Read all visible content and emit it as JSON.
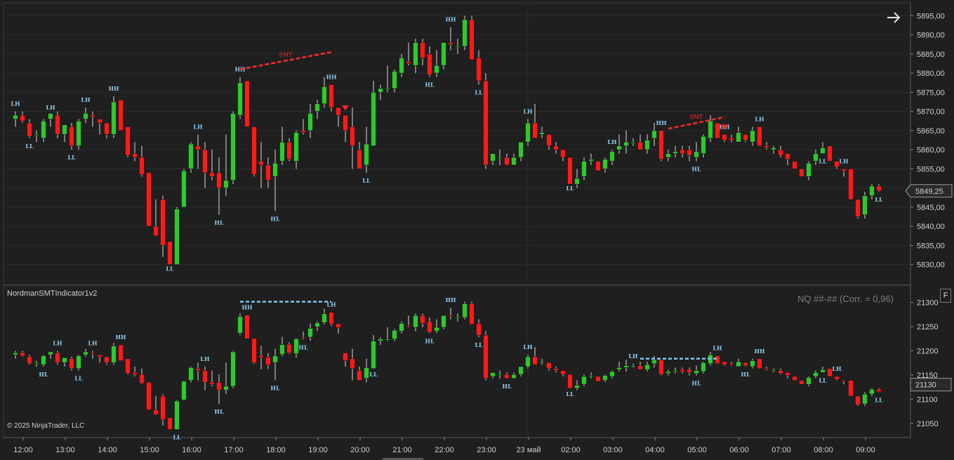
{
  "theme": {
    "background": "#1f1f1f",
    "grid": "#2b2b2b",
    "up_color": "#2ec82e",
    "down_color": "#ff1a1a",
    "swing_label_color": "#8ecbf0",
    "smt_color": "#ff2a2a",
    "smt_dotted_color": "#7ec8f0"
  },
  "icons": {
    "nav_arrow": "arrow-right-icon",
    "flag": "F"
  },
  "indicator_name": "NordmanSMTIndicator1v2",
  "correlation_label": "NQ ##-## (Corr. = 0,96)",
  "copyright": "© 2025 NinjaTrader, LLC",
  "price_axis": {
    "labels": [
      "5895,00",
      "5890,00",
      "5885,00",
      "5880,00",
      "5875,00",
      "5870,00",
      "5865,00",
      "5860,00",
      "5855,00",
      "5850,00",
      "5845,00",
      "5840,00",
      "5835,00",
      "5830,00"
    ],
    "current": "5849,25"
  },
  "lower_axis": {
    "labels": [
      "21300",
      "21250",
      "21200",
      "21150",
      "21130",
      "21100",
      "21050"
    ],
    "current": "21130"
  },
  "time_axis": [
    "12:00",
    "13:00",
    "14:00",
    "15:00",
    "16:00",
    "17:00",
    "18:00",
    "19:00",
    "20:00",
    "21:00",
    "22:00",
    "23:00",
    "23 май",
    "02:00",
    "03:00",
    "04:00",
    "05:00",
    "06:00",
    "07:00",
    "08:00",
    "09:00"
  ],
  "chart_data": [
    {
      "type": "candlestick",
      "instrument": "upper",
      "ylim": [
        5825,
        5898
      ],
      "smt": {
        "label": "SMT",
        "from_bar": 32,
        "to_bar": 45,
        "y1": 5881,
        "y2": 5885.5
      },
      "smt2": {
        "label": "SMT",
        "from_bar": 93,
        "to_bar": 101,
        "y1": 5865.5,
        "y2": 5868.5
      },
      "bars": [
        [
          5868,
          5870,
          5866,
          5869
        ],
        [
          5869,
          5870,
          5867,
          5867.5
        ],
        [
          5867,
          5868,
          5863,
          5863.5
        ],
        [
          5864,
          5865,
          5862,
          5864
        ],
        [
          5863,
          5868,
          5862,
          5867.5
        ],
        [
          5868,
          5869,
          5866,
          5869.5
        ],
        [
          5869,
          5870,
          5863,
          5864
        ],
        [
          5864,
          5866,
          5862,
          5866.5
        ],
        [
          5866,
          5867,
          5860,
          5861
        ],
        [
          5861,
          5868,
          5860,
          5867.5
        ],
        [
          5868,
          5871,
          5867,
          5869.5
        ],
        [
          5869,
          5870,
          5866,
          5868.5
        ],
        [
          5868,
          5868,
          5864,
          5867
        ],
        [
          5867,
          5867,
          5863,
          5864
        ],
        [
          5864,
          5874,
          5863,
          5872.5
        ],
        [
          5873,
          5873,
          5865,
          5865
        ],
        [
          5866,
          5866,
          5858,
          5858.5
        ],
        [
          5859,
          5862,
          5857,
          5858
        ],
        [
          5858,
          5861,
          5853,
          5853.5
        ],
        [
          5854,
          5854,
          5843,
          5840
        ],
        [
          5840,
          5847,
          5838,
          5837.5
        ],
        [
          5847,
          5848,
          5832,
          5835
        ],
        [
          5836,
          5836,
          5831,
          5830
        ],
        [
          5830,
          5845,
          5830,
          5844.5
        ],
        [
          5845,
          5855,
          5845,
          5854.5
        ],
        [
          5855,
          5862,
          5854,
          5861.5
        ],
        [
          5861,
          5864,
          5855,
          5860
        ],
        [
          5860,
          5862,
          5850,
          5854
        ],
        [
          5854,
          5860,
          5852,
          5853
        ],
        [
          5854,
          5858,
          5843,
          5850
        ],
        [
          5850,
          5864,
          5848,
          5852
        ],
        [
          5852,
          5870,
          5851,
          5869.5
        ],
        [
          5869,
          5879,
          5868,
          5877.5
        ],
        [
          5878,
          5878,
          5866,
          5866
        ],
        [
          5866,
          5866,
          5853,
          5853.5
        ],
        [
          5857,
          5862,
          5850,
          5856
        ],
        [
          5856,
          5858,
          5850,
          5852
        ],
        [
          5853,
          5860,
          5844,
          5856.5
        ],
        [
          5857,
          5866,
          5856,
          5862
        ],
        [
          5862,
          5863,
          5857,
          5857.5
        ],
        [
          5857,
          5865,
          5855,
          5864.5
        ],
        [
          5865,
          5868,
          5864,
          5864.5
        ],
        [
          5865,
          5872,
          5863,
          5869.5
        ],
        [
          5870,
          5873,
          5868,
          5872
        ],
        [
          5872,
          5879,
          5871,
          5876.5
        ],
        [
          5877,
          5877,
          5870,
          5871
        ],
        [
          5871,
          5871,
          5866,
          5869
        ],
        [
          5869,
          5869,
          5862,
          5865
        ],
        [
          5866,
          5871,
          5855,
          5861
        ],
        [
          5860,
          5862,
          5857,
          5855
        ],
        [
          5856,
          5866,
          5854,
          5861.5
        ],
        [
          5861,
          5878,
          5862,
          5875
        ],
        [
          5875,
          5877,
          5873,
          5876
        ],
        [
          5876,
          5882,
          5875,
          5876
        ],
        [
          5876,
          5881,
          5875,
          5880.5
        ],
        [
          5880,
          5885,
          5879,
          5884
        ],
        [
          5883,
          5888,
          5882,
          5882.5
        ],
        [
          5882,
          5889,
          5880,
          5888
        ],
        [
          5888,
          5889,
          5882,
          5884
        ],
        [
          5885,
          5887,
          5879,
          5879.5
        ],
        [
          5880,
          5886,
          5879,
          5882
        ],
        [
          5882,
          5888,
          5881,
          5888
        ],
        [
          5888,
          5892,
          5886,
          5887.5
        ],
        [
          5887,
          5889,
          5885,
          5887
        ],
        [
          5887,
          5895,
          5886,
          5894
        ],
        [
          5894,
          5895,
          5884,
          5883.5
        ],
        [
          5884,
          5886,
          5877,
          5878
        ],
        [
          5878,
          5880,
          5855,
          5856
        ],
        [
          5857,
          5859,
          5856,
          5859
        ],
        [
          5858,
          5860,
          5856,
          5858
        ],
        [
          5858,
          5859,
          5856,
          5856
        ],
        [
          5856,
          5859,
          5856,
          5858
        ],
        [
          5858,
          5862,
          5857,
          5862
        ],
        [
          5862,
          5868,
          5861,
          5867
        ],
        [
          5867,
          5872,
          5863,
          5863
        ],
        [
          5864,
          5866,
          5863,
          5864.5
        ],
        [
          5864,
          5864,
          5860,
          5861
        ],
        [
          5861,
          5862,
          5859,
          5860
        ],
        [
          5860,
          5860,
          5857,
          5858
        ],
        [
          5858,
          5858,
          5852,
          5851
        ],
        [
          5851,
          5855,
          5850,
          5852.5
        ],
        [
          5853,
          5858,
          5852,
          5857
        ],
        [
          5857,
          5859,
          5856,
          5857.5
        ],
        [
          5857,
          5857,
          5855,
          5854.5
        ],
        [
          5855,
          5858,
          5854,
          5857.5
        ],
        [
          5857,
          5860,
          5856,
          5859.5
        ],
        [
          5860,
          5864,
          5859,
          5861
        ],
        [
          5861,
          5865,
          5859,
          5862
        ],
        [
          5862,
          5863,
          5861,
          5862
        ],
        [
          5862,
          5864,
          5860,
          5860
        ],
        [
          5860,
          5864,
          5859,
          5862.5
        ],
        [
          5863,
          5867,
          5861,
          5865
        ],
        [
          5865,
          5865,
          5857,
          5857.5
        ],
        [
          5858,
          5860,
          5857,
          5859
        ],
        [
          5859,
          5861,
          5858,
          5859.5
        ],
        [
          5860,
          5861,
          5858,
          5859
        ],
        [
          5860,
          5861,
          5857,
          5858.5
        ],
        [
          5858,
          5862,
          5857,
          5859.5
        ],
        [
          5859,
          5864,
          5858,
          5863.5
        ],
        [
          5863,
          5869,
          5862,
          5867.5
        ],
        [
          5867,
          5867,
          5864,
          5863
        ],
        [
          5864,
          5864,
          5862,
          5862.5
        ],
        [
          5863,
          5864,
          5862,
          5862.5
        ],
        [
          5862,
          5866,
          5862,
          5864.5
        ],
        [
          5864,
          5864,
          5862,
          5862.5
        ],
        [
          5862,
          5866,
          5861,
          5865
        ],
        [
          5866,
          5866,
          5861,
          5861
        ],
        [
          5861,
          5862,
          5860,
          5860.5
        ],
        [
          5860,
          5861,
          5859,
          5860.5
        ],
        [
          5860,
          5861,
          5858,
          5858.5
        ],
        [
          5859,
          5859,
          5856,
          5857.5
        ],
        [
          5857,
          5857,
          5855,
          5855
        ],
        [
          5855,
          5855,
          5853,
          5853
        ],
        [
          5853,
          5857,
          5852,
          5856.5
        ],
        [
          5857,
          5860,
          5856,
          5859
        ],
        [
          5859,
          5862,
          5859,
          5860.5
        ],
        [
          5861,
          5861,
          5858,
          5857
        ],
        [
          5857,
          5857,
          5855,
          5855.5
        ],
        [
          5855,
          5855,
          5853,
          5854.5
        ],
        [
          5855,
          5855,
          5847,
          5847
        ],
        [
          5847,
          5847,
          5842,
          5842.5
        ],
        [
          5843,
          5849,
          5842,
          5848
        ],
        [
          5848,
          5851,
          5847,
          5850.5
        ],
        [
          5850.5,
          5851,
          5849,
          5849.25
        ]
      ],
      "labels": [
        {
          "bar": 0,
          "text": "LH",
          "pos": "above"
        },
        {
          "bar": 2,
          "text": "LL",
          "pos": "below"
        },
        {
          "bar": 5,
          "text": "LH",
          "pos": "above"
        },
        {
          "bar": 8,
          "text": "LL",
          "pos": "below"
        },
        {
          "bar": 10,
          "text": "LH",
          "pos": "above"
        },
        {
          "bar": 14,
          "text": "HH",
          "pos": "above"
        },
        {
          "bar": 22,
          "text": "LL",
          "pos": "below"
        },
        {
          "bar": 26,
          "text": "LH",
          "pos": "above"
        },
        {
          "bar": 29,
          "text": "HL",
          "pos": "below"
        },
        {
          "bar": 32,
          "text": "HH",
          "pos": "above"
        },
        {
          "bar": 37,
          "text": "HL",
          "pos": "below"
        },
        {
          "bar": 45,
          "text": "HH",
          "pos": "above"
        },
        {
          "bar": 50,
          "text": "LL",
          "pos": "below"
        },
        {
          "bar": 59,
          "text": "HL",
          "pos": "below"
        },
        {
          "bar": 62,
          "text": "HH",
          "pos": "above"
        },
        {
          "bar": 66,
          "text": "LL",
          "pos": "below"
        },
        {
          "bar": 73,
          "text": "LH",
          "pos": "above"
        },
        {
          "bar": 79,
          "text": "LL",
          "pos": "below"
        },
        {
          "bar": 85,
          "text": "LH",
          "pos": "above"
        },
        {
          "bar": 92,
          "text": "HH",
          "pos": "above"
        },
        {
          "bar": 97,
          "text": "HL",
          "pos": "below"
        },
        {
          "bar": 101,
          "text": "HH",
          "pos": "above"
        },
        {
          "bar": 106,
          "text": "LH",
          "pos": "above"
        },
        {
          "bar": 115,
          "text": "LL",
          "pos": "below"
        },
        {
          "bar": 118,
          "text": "LH",
          "pos": "above"
        },
        {
          "bar": 123,
          "text": "LL",
          "pos": "below"
        }
      ],
      "markers": [
        {
          "bar": 47,
          "type": "down-triangle"
        },
        {
          "bar": 101,
          "type": "down-triangle"
        }
      ]
    },
    {
      "type": "candlestick",
      "instrument": "NQ ##-##",
      "ylim": [
        5827,
        5902
      ],
      "smt_dotted": [
        {
          "from_bar": 32,
          "to_bar": 45,
          "y1": 5895,
          "y2": 5895
        },
        {
          "from_bar": 89,
          "to_bar": 100,
          "y1": 5866,
          "y2": 5866
        }
      ],
      "labels": [
        {
          "bar": 4,
          "text": "HL",
          "pos": "below"
        },
        {
          "bar": 6,
          "text": "LH",
          "pos": "above"
        },
        {
          "bar": 9,
          "text": "LL",
          "pos": "below"
        },
        {
          "bar": 11,
          "text": "LH",
          "pos": "above"
        },
        {
          "bar": 15,
          "text": "HH",
          "pos": "above"
        },
        {
          "bar": 23,
          "text": "LL",
          "pos": "below"
        },
        {
          "bar": 27,
          "text": "LH",
          "pos": "above"
        },
        {
          "bar": 29,
          "text": "HL",
          "pos": "below"
        },
        {
          "bar": 33,
          "text": "HH",
          "pos": "above"
        },
        {
          "bar": 37,
          "text": "HL",
          "pos": "below"
        },
        {
          "bar": 41,
          "text": "HL",
          "pos": "below"
        },
        {
          "bar": 45,
          "text": "LH",
          "pos": "above"
        },
        {
          "bar": 51,
          "text": "LL",
          "pos": "below"
        },
        {
          "bar": 59,
          "text": "HL",
          "pos": "below"
        },
        {
          "bar": 62,
          "text": "HH",
          "pos": "above"
        },
        {
          "bar": 66,
          "text": "LL",
          "pos": "below"
        },
        {
          "bar": 70,
          "text": "HL",
          "pos": "below"
        },
        {
          "bar": 73,
          "text": "LH",
          "pos": "above"
        },
        {
          "bar": 79,
          "text": "LL",
          "pos": "below"
        },
        {
          "bar": 88,
          "text": "LH",
          "pos": "above"
        },
        {
          "bar": 97,
          "text": "HL",
          "pos": "below"
        },
        {
          "bar": 100,
          "text": "LH",
          "pos": "above"
        },
        {
          "bar": 104,
          "text": "HL",
          "pos": "below"
        },
        {
          "bar": 106,
          "text": "HH",
          "pos": "above"
        },
        {
          "bar": 115,
          "text": "LL",
          "pos": "below"
        },
        {
          "bar": 117,
          "text": "LH",
          "pos": "above"
        },
        {
          "bar": 123,
          "text": "LL",
          "pos": "below"
        }
      ]
    }
  ]
}
